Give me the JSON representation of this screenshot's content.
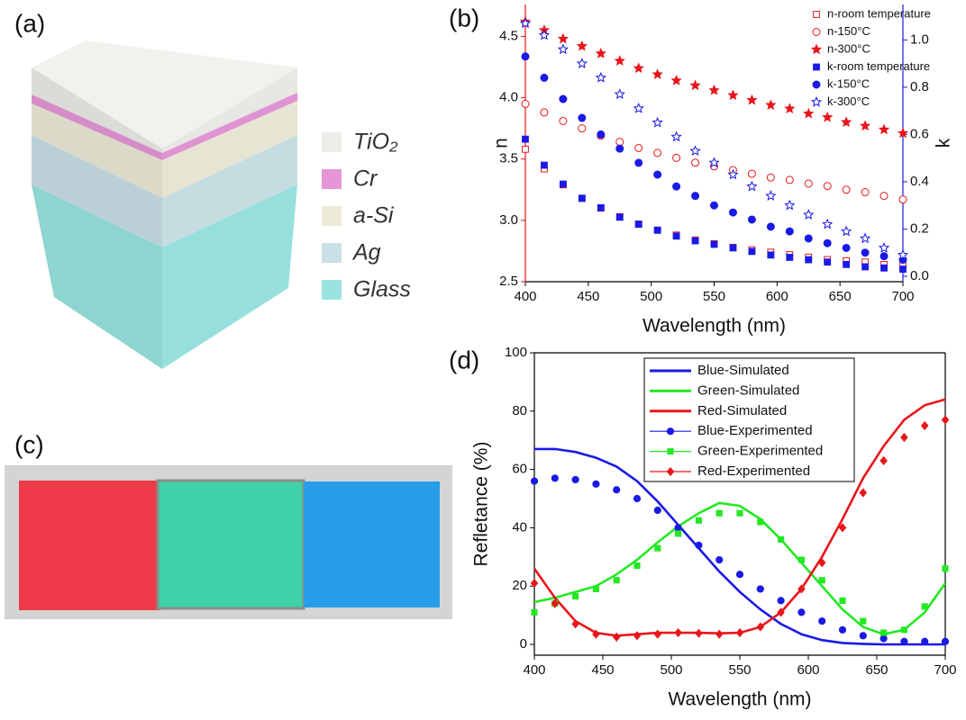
{
  "panel_a": {
    "panel_label": "(a)",
    "layers": [
      "TiO₂",
      "Cr",
      "a-Si",
      "Ag",
      "Glass"
    ],
    "layer_colors": [
      "#ecece8",
      "#e596d6",
      "#ebead8",
      "#c9e0e6",
      "#99e4e0"
    ]
  },
  "panel_c": {
    "panel_label": "(c)"
  },
  "chart_data": [
    {
      "type": "scatter",
      "panel_label": "(b)",
      "x_label": "Wavelength (nm)",
      "y_label": "n",
      "y2_label": "k",
      "x": [
        400,
        415,
        430,
        445,
        460,
        475,
        490,
        505,
        520,
        535,
        550,
        565,
        580,
        595,
        610,
        625,
        640,
        655,
        670,
        685,
        700
      ],
      "xlim": [
        400,
        700
      ],
      "xticks": [
        400,
        450,
        500,
        550,
        600,
        650,
        700
      ],
      "ylim": [
        2.5,
        4.76
      ],
      "yticks": [
        2.5,
        {
          "value": 3,
          "label": "3.0"
        },
        3.5,
        {
          "value": 4,
          "label": "4.0"
        },
        4.5
      ],
      "y2lim": [
        -0.023,
        1.15
      ],
      "y2ticks": [
        {
          "value": 0,
          "label": "0.0"
        },
        0.2,
        0.4,
        0.6,
        0.8,
        {
          "value": 1,
          "label": "1.0"
        }
      ],
      "y_axis_color": "#e8161b",
      "y2_axis_color": "#1a1ae6",
      "legend": "upper right",
      "series": [
        {
          "name": "n-room temperature",
          "color": "#e8161b",
          "marker": "square",
          "filled": false,
          "values": [
            3.58,
            3.42,
            3.29,
            3.18,
            3.1,
            3.03,
            2.97,
            2.92,
            2.88,
            2.84,
            2.81,
            2.78,
            2.76,
            2.74,
            2.72,
            2.7,
            2.68,
            2.67,
            2.66,
            2.64,
            2.63
          ]
        },
        {
          "name": "n-150°C",
          "color": "#e8161b",
          "marker": "circle",
          "filled": false,
          "values": [
            3.95,
            3.88,
            3.81,
            3.75,
            3.69,
            3.64,
            3.59,
            3.55,
            3.51,
            3.47,
            3.44,
            3.41,
            3.38,
            3.35,
            3.33,
            3.3,
            3.28,
            3.25,
            3.23,
            3.2,
            3.17
          ]
        },
        {
          "name": "n-300°C",
          "color": "#e8161b",
          "marker": "star",
          "filled": true,
          "values": [
            4.62,
            4.55,
            4.48,
            4.42,
            4.36,
            4.3,
            4.24,
            4.19,
            4.14,
            4.1,
            4.06,
            4.02,
            3.98,
            3.94,
            3.91,
            3.87,
            3.84,
            3.8,
            3.77,
            3.74,
            3.71
          ]
        },
        {
          "name": "k-room temperature",
          "color": "#1a1ae6",
          "marker": "square",
          "filled": true,
          "axis": "y2",
          "values": [
            0.58,
            0.47,
            0.39,
            0.33,
            0.29,
            0.25,
            0.22,
            0.195,
            0.17,
            0.15,
            0.135,
            0.12,
            0.105,
            0.09,
            0.08,
            0.07,
            0.06,
            0.05,
            0.04,
            0.035,
            0.03
          ]
        },
        {
          "name": "k-150°C",
          "color": "#1a1ae6",
          "marker": "circle",
          "filled": true,
          "axis": "y2",
          "values": [
            0.93,
            0.84,
            0.75,
            0.67,
            0.6,
            0.54,
            0.48,
            0.43,
            0.38,
            0.34,
            0.3,
            0.27,
            0.24,
            0.21,
            0.19,
            0.16,
            0.14,
            0.12,
            0.1,
            0.085,
            0.07
          ]
        },
        {
          "name": "k-300°C",
          "color": "#1a1ae6",
          "marker": "star",
          "filled": false,
          "axis": "y2",
          "values": [
            1.07,
            1.02,
            0.96,
            0.9,
            0.84,
            0.77,
            0.71,
            0.65,
            0.59,
            0.53,
            0.48,
            0.43,
            0.38,
            0.34,
            0.3,
            0.26,
            0.22,
            0.19,
            0.16,
            0.12,
            0.09
          ]
        }
      ]
    },
    {
      "type": "line",
      "panel_label": "(d)",
      "x_label": "Wavelength (nm)",
      "y_label": "Refletance (%)",
      "x": [
        400,
        415,
        430,
        445,
        460,
        475,
        490,
        505,
        520,
        535,
        550,
        565,
        580,
        595,
        610,
        625,
        640,
        655,
        670,
        685,
        700
      ],
      "xlim": [
        400,
        700
      ],
      "xticks": [
        400,
        450,
        500,
        550,
        600,
        650,
        700
      ],
      "ylim": [
        -3.7,
        100
      ],
      "yticks": [
        0,
        20,
        40,
        60,
        80,
        100
      ],
      "legend": "upper center",
      "series": [
        {
          "name": "Blue-Simulated",
          "color": "#1a1ae6",
          "style": "line",
          "values": [
            67,
            67,
            66,
            64,
            61,
            56,
            49,
            41,
            33,
            25,
            18,
            12,
            7,
            3.5,
            1.5,
            0.5,
            0.2,
            0,
            0,
            0,
            0
          ]
        },
        {
          "name": "Green-Simulated",
          "color": "#22e822",
          "style": "line",
          "values": [
            14.5,
            16,
            18,
            20,
            24,
            29,
            35,
            40.5,
            45,
            48.5,
            47.5,
            43,
            36,
            28,
            20,
            12,
            6,
            3.5,
            5,
            11,
            21
          ]
        },
        {
          "name": "Red-Simulated",
          "color": "#e8161b",
          "style": "line",
          "values": [
            26,
            16,
            8,
            4,
            3,
            3.5,
            4,
            4,
            4,
            3.8,
            4,
            6,
            11,
            19,
            30,
            43,
            57,
            68,
            77,
            82,
            84
          ]
        },
        {
          "name": "Blue-Experimented",
          "color": "#1a1ae6",
          "style": "markers",
          "marker": "circle",
          "values": [
            56,
            57,
            56.5,
            55,
            53,
            50,
            46,
            40,
            34,
            29,
            24,
            19,
            15,
            11,
            8,
            5,
            3,
            2,
            1,
            1,
            1
          ]
        },
        {
          "name": "Green-Experimented",
          "color": "#22e822",
          "style": "markers",
          "marker": "square",
          "values": [
            11,
            14,
            16.5,
            19,
            22,
            27,
            33,
            38,
            42.5,
            45,
            45,
            42,
            36,
            29,
            22,
            15,
            8,
            4,
            5,
            13,
            26
          ]
        },
        {
          "name": "Red-Experimented",
          "color": "#e8161b",
          "style": "markers",
          "marker": "diamond",
          "values": [
            21,
            14,
            7,
            3.5,
            2.5,
            3,
            3.5,
            4,
            3.8,
            3.5,
            4,
            6,
            11,
            19,
            28,
            40,
            52,
            63,
            71,
            75,
            77
          ]
        }
      ]
    }
  ]
}
